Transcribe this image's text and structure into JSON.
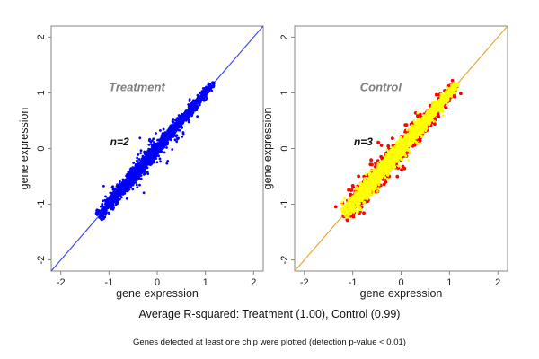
{
  "captions": {
    "summary": "Average R-squared: Treatment (1.00), Control (0.99)",
    "note": "Genes detected at least one chip were plotted (detection p-value < 0.01)"
  },
  "chart_data": [
    {
      "type": "scatter",
      "panel": "Treatment",
      "n_replicates": 2,
      "avg_r_squared": "1.00",
      "xlabel": "gene expression",
      "ylabel": "gene expression",
      "xlim": [
        -2.2,
        2.2
      ],
      "ylim": [
        -2.2,
        2.2
      ],
      "xticks": [
        -2,
        -1,
        0,
        1,
        2
      ],
      "yticks": [
        -2,
        -1,
        0,
        1,
        2
      ],
      "grid": false,
      "legend": "none",
      "frame_color": "#858585",
      "tick_label_color": "#1a1a1a",
      "identity_line": {
        "x1": -2.2,
        "y1": -2.2,
        "x2": 2.2,
        "y2": 2.2,
        "color": "#4444ff"
      },
      "annotations": [
        {
          "id": "panel-title",
          "text": "Treatment",
          "x": -0.42,
          "y": 1.03,
          "color": "#7f7f7f",
          "size": 13
        },
        {
          "id": "n-label",
          "text": "n=2",
          "x": -0.78,
          "y": 0.06,
          "color": "#111111",
          "size": 12
        }
      ],
      "series": [
        {
          "name": "treatment-replicate-agreement",
          "color": "#0000ff",
          "n": 2600,
          "seed": 7,
          "diag_range": [
            -1.22,
            1.18
          ],
          "sd_near": 0.042,
          "sd_far": 0.018,
          "fringe_frac": 0.07,
          "fringe_mult": 2.8,
          "point_radius": 1.4
        }
      ]
    },
    {
      "type": "scatter",
      "panel": "Control",
      "n_replicates": 3,
      "avg_r_squared": "0.99",
      "xlabel": "gene expression",
      "ylabel": "gene expression",
      "xlim": [
        -2.2,
        2.2
      ],
      "ylim": [
        -2.2,
        2.2
      ],
      "xticks": [
        -2,
        -1,
        0,
        1,
        2
      ],
      "yticks": [
        -2,
        -1,
        0,
        1,
        2
      ],
      "grid": false,
      "legend": "none",
      "frame_color": "#858585",
      "tick_label_color": "#1a1a1a",
      "identity_line": {
        "x1": -2.2,
        "y1": -2.2,
        "x2": 2.2,
        "y2": 2.2,
        "color": "#f0a432"
      },
      "annotations": [
        {
          "id": "panel-title",
          "text": "Control",
          "x": -0.42,
          "y": 1.03,
          "color": "#7f7f7f",
          "size": 13
        },
        {
          "id": "n-label",
          "text": "n=3",
          "x": -0.78,
          "y": 0.06,
          "color": "#111111",
          "size": 12
        }
      ],
      "series": [
        {
          "name": "control-outlier-fringe",
          "color": "#ff0000",
          "n": 850,
          "seed": 11,
          "diag_range": [
            -1.2,
            1.15
          ],
          "sd_near": 0.08,
          "sd_far": 0.04,
          "fringe_frac": 0.05,
          "fringe_mult": 2.0,
          "point_radius": 1.9
        },
        {
          "name": "control-minor-points",
          "color": "#0000ff",
          "n": 40,
          "seed": 5,
          "diag_range": [
            -1.15,
            1.1
          ],
          "sd_near": 0.06,
          "sd_far": 0.04,
          "fringe_frac": 0.1,
          "fringe_mult": 1.6,
          "point_radius": 1.4
        },
        {
          "name": "control-core-agreement",
          "color": "#ffff00",
          "n": 2800,
          "seed": 23,
          "diag_range": [
            -1.18,
            1.16
          ],
          "sd_near": 0.05,
          "sd_far": 0.022,
          "fringe_frac": 0.04,
          "fringe_mult": 1.8,
          "point_radius": 1.5
        }
      ]
    }
  ]
}
